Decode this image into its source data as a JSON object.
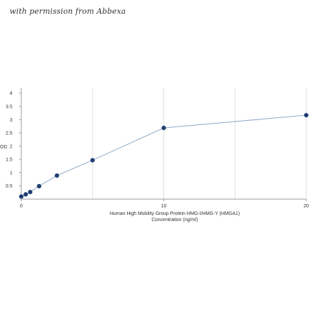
{
  "watermark": "with permission from Abbexa",
  "chart_data": {
    "type": "line",
    "title": "",
    "xlabel_line1": "Human High Mobility Group Protein HMG-I/HMG-Y (HMGA1)",
    "xlabel_line2": "Concentration (ng/ml)",
    "ylabel": "OD",
    "xlim": [
      0,
      20
    ],
    "ylim": [
      0,
      4.2
    ],
    "x_ticks": [
      0,
      10,
      20
    ],
    "x_tick_labels": [
      "0",
      "10",
      "20"
    ],
    "x_gridlines": [
      5,
      10,
      15,
      20
    ],
    "y_ticks": [
      0.5,
      1,
      1.5,
      2,
      2.5,
      3,
      3.5,
      4
    ],
    "y_tick_labels": [
      "0.5",
      "1",
      "1.5",
      "2",
      "2.5",
      "3",
      "3.5",
      "4"
    ],
    "grid": true,
    "series": [
      {
        "x": [
          0,
          0.3125,
          0.625,
          1.25,
          2.5,
          5,
          10,
          20
        ],
        "y": [
          0.1,
          0.18,
          0.27,
          0.49,
          0.89,
          1.47,
          2.69,
          3.17
        ]
      }
    ],
    "colors": {
      "line": "#8fa8c8",
      "marker": "#1f3f73",
      "grid": "#dddddd",
      "axis": "#999999"
    }
  }
}
